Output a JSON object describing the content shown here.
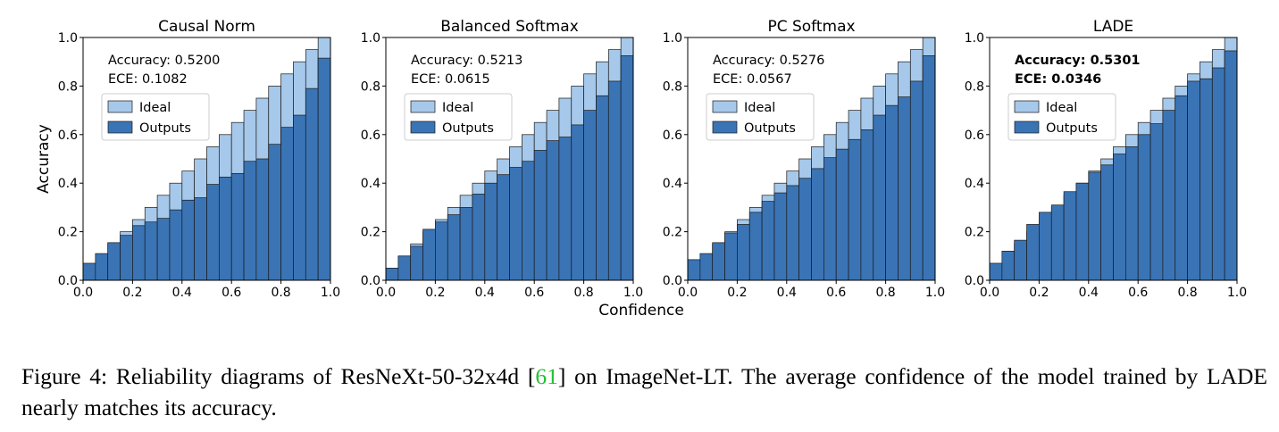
{
  "figure": {
    "shared_xlabel": "Confidence",
    "shared_ylabel": "Accuracy",
    "caption": {
      "prefix": "Figure 4: Reliability diagrams of ResNeXt-50-32x4d [",
      "ref": "61",
      "suffix": "] on ImageNet-LT. The average confidence of the model trained by LADE nearly matches its accuracy."
    }
  },
  "colors": {
    "ideal": "#a6c8ea",
    "outputs": "#3a74b5",
    "edge": "#1a1a1a",
    "ref_link": "#22c032"
  },
  "chart_data": [
    {
      "type": "bar",
      "title": "Causal Norm",
      "xlabel": "",
      "ylabel": "Accuracy",
      "xlim": [
        0,
        1
      ],
      "ylim": [
        0,
        1
      ],
      "xticks": [
        "0.0",
        "0.2",
        "0.4",
        "0.6",
        "0.8",
        "1.0"
      ],
      "yticks": [
        "0.0",
        "0.2",
        "0.4",
        "0.6",
        "0.8",
        "1.0"
      ],
      "grid": false,
      "legend_position": "upper-left",
      "legend": [
        "Ideal",
        "Outputs"
      ],
      "annotations": [
        "Accuracy: 0.5200",
        "ECE: 0.1082"
      ],
      "annotation_bold": false,
      "bins": 20,
      "series": [
        {
          "name": "Ideal",
          "values": [
            0.05,
            0.1,
            0.15,
            0.2,
            0.25,
            0.3,
            0.35,
            0.4,
            0.45,
            0.5,
            0.55,
            0.6,
            0.65,
            0.7,
            0.75,
            0.8,
            0.85,
            0.9,
            0.95,
            1.0
          ]
        },
        {
          "name": "Outputs",
          "values": [
            0.07,
            0.11,
            0.155,
            0.185,
            0.225,
            0.24,
            0.255,
            0.29,
            0.33,
            0.34,
            0.395,
            0.425,
            0.44,
            0.49,
            0.5,
            0.56,
            0.63,
            0.68,
            0.79,
            0.915
          ]
        }
      ]
    },
    {
      "type": "bar",
      "title": "Balanced Softmax",
      "xlabel": "",
      "ylabel": "",
      "xlim": [
        0,
        1
      ],
      "ylim": [
        0,
        1
      ],
      "xticks": [
        "0.0",
        "0.2",
        "0.4",
        "0.6",
        "0.8",
        "1.0"
      ],
      "yticks": [
        "0.0",
        "0.2",
        "0.4",
        "0.6",
        "0.8",
        "1.0"
      ],
      "grid": false,
      "legend_position": "upper-left",
      "legend": [
        "Ideal",
        "Outputs"
      ],
      "annotations": [
        "Accuracy: 0.5213",
        "ECE: 0.0615"
      ],
      "annotation_bold": false,
      "bins": 20,
      "series": [
        {
          "name": "Ideal",
          "values": [
            0.05,
            0.1,
            0.15,
            0.2,
            0.25,
            0.3,
            0.35,
            0.4,
            0.45,
            0.5,
            0.55,
            0.6,
            0.65,
            0.7,
            0.75,
            0.8,
            0.85,
            0.9,
            0.95,
            1.0
          ]
        },
        {
          "name": "Outputs",
          "values": [
            0.05,
            0.1,
            0.14,
            0.21,
            0.24,
            0.27,
            0.3,
            0.355,
            0.4,
            0.435,
            0.465,
            0.49,
            0.535,
            0.575,
            0.59,
            0.64,
            0.7,
            0.76,
            0.82,
            0.925
          ]
        }
      ]
    },
    {
      "type": "bar",
      "title": "PC Softmax",
      "xlabel": "",
      "ylabel": "",
      "xlim": [
        0,
        1
      ],
      "ylim": [
        0,
        1
      ],
      "xticks": [
        "0.0",
        "0.2",
        "0.4",
        "0.6",
        "0.8",
        "1.0"
      ],
      "yticks": [
        "0.0",
        "0.2",
        "0.4",
        "0.6",
        "0.8",
        "1.0"
      ],
      "grid": false,
      "legend_position": "upper-left",
      "legend": [
        "Ideal",
        "Outputs"
      ],
      "annotations": [
        "Accuracy: 0.5276",
        "ECE: 0.0567"
      ],
      "annotation_bold": false,
      "bins": 20,
      "series": [
        {
          "name": "Ideal",
          "values": [
            0.05,
            0.1,
            0.15,
            0.2,
            0.25,
            0.3,
            0.35,
            0.4,
            0.45,
            0.5,
            0.55,
            0.6,
            0.65,
            0.7,
            0.75,
            0.8,
            0.85,
            0.9,
            0.95,
            1.0
          ]
        },
        {
          "name": "Outputs",
          "values": [
            0.085,
            0.11,
            0.155,
            0.195,
            0.23,
            0.28,
            0.325,
            0.36,
            0.39,
            0.42,
            0.46,
            0.505,
            0.54,
            0.58,
            0.62,
            0.68,
            0.72,
            0.755,
            0.82,
            0.925
          ]
        }
      ]
    },
    {
      "type": "bar",
      "title": "LADE",
      "xlabel": "",
      "ylabel": "",
      "xlim": [
        0,
        1
      ],
      "ylim": [
        0,
        1
      ],
      "xticks": [
        "0.0",
        "0.2",
        "0.4",
        "0.6",
        "0.8",
        "1.0"
      ],
      "yticks": [
        "0.0",
        "0.2",
        "0.4",
        "0.6",
        "0.8",
        "1.0"
      ],
      "grid": false,
      "legend_position": "upper-left",
      "legend": [
        "Ideal",
        "Outputs"
      ],
      "annotations": [
        "Accuracy: 0.5301",
        "ECE: 0.0346"
      ],
      "annotation_bold": true,
      "bins": 20,
      "series": [
        {
          "name": "Ideal",
          "values": [
            0.05,
            0.1,
            0.15,
            0.2,
            0.25,
            0.3,
            0.35,
            0.4,
            0.45,
            0.5,
            0.55,
            0.6,
            0.65,
            0.7,
            0.75,
            0.8,
            0.85,
            0.9,
            0.95,
            1.0
          ]
        },
        {
          "name": "Outputs",
          "values": [
            0.07,
            0.12,
            0.165,
            0.23,
            0.28,
            0.31,
            0.365,
            0.4,
            0.445,
            0.475,
            0.52,
            0.55,
            0.6,
            0.645,
            0.7,
            0.76,
            0.82,
            0.83,
            0.875,
            0.945
          ]
        }
      ]
    }
  ]
}
